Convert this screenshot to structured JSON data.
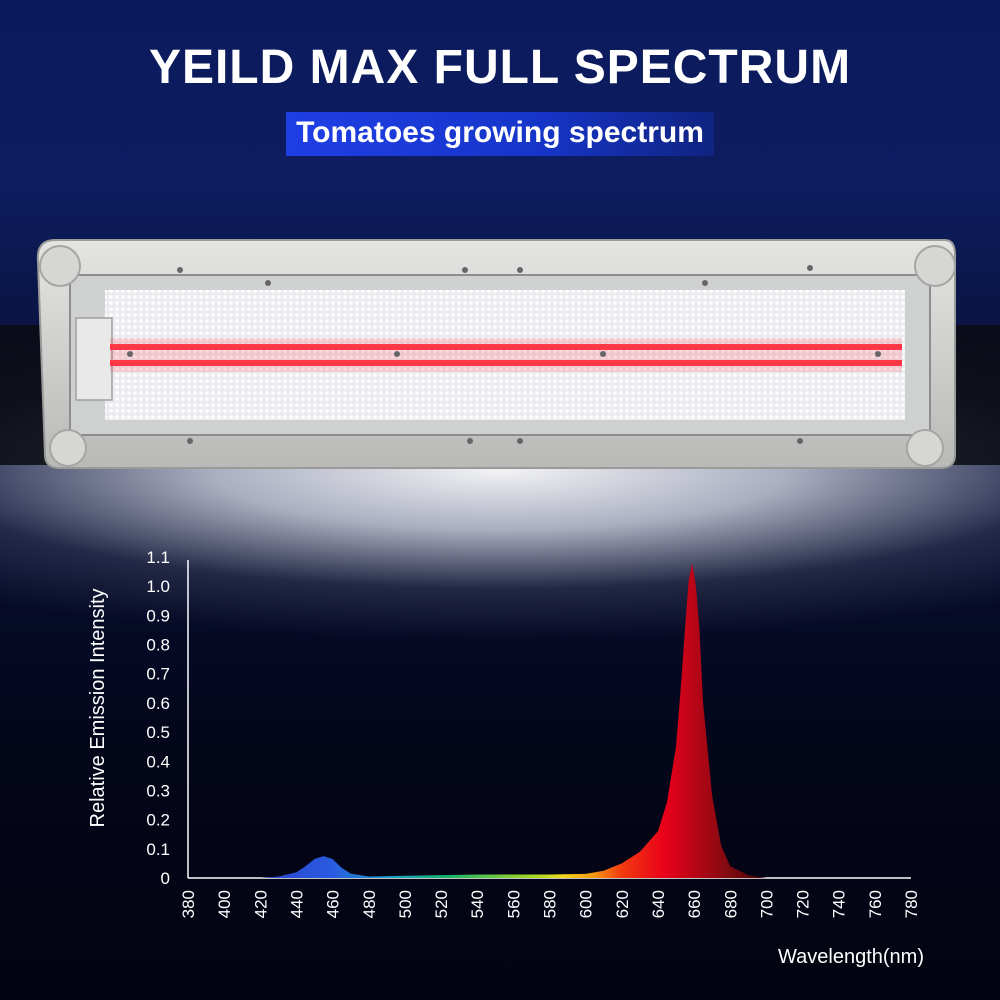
{
  "header": {
    "title": "YEILD MAX FULL SPECTRUM",
    "subtitle": "Tomatoes growing spectrum"
  },
  "colors": {
    "subtitle_bg": "#1f3fe6",
    "title_text": "#ffffff",
    "red_peak": "#e8001a",
    "blue_peak": "#2a4fd8"
  },
  "chart_data": {
    "type": "area",
    "title": "",
    "xlabel": "Wavelength(nm)",
    "ylabel": "Relative Emission Intensity",
    "xlim": [
      380,
      780
    ],
    "ylim": [
      0,
      1.1
    ],
    "xticks": [
      380,
      400,
      420,
      440,
      460,
      480,
      500,
      520,
      540,
      560,
      580,
      600,
      620,
      640,
      660,
      680,
      700,
      720,
      740,
      760,
      780
    ],
    "yticks": [
      "0",
      "0.1",
      "0.2",
      "0.3",
      "0.4",
      "0.5",
      "0.6",
      "0.7",
      "0.8",
      "0.9",
      "1.0",
      "1.1"
    ],
    "grid": false,
    "legend": "none",
    "series": [
      {
        "x": [
          380,
          420,
          430,
          440,
          445,
          450,
          455,
          460,
          465,
          470,
          480,
          500,
          520,
          540,
          560,
          580,
          600,
          610,
          620,
          630,
          640,
          645,
          650,
          653,
          655,
          657,
          659,
          661,
          663,
          665,
          670,
          675,
          680,
          690,
          700,
          780
        ],
        "y": [
          0,
          0,
          0.005,
          0.02,
          0.04,
          0.065,
          0.075,
          0.065,
          0.035,
          0.015,
          0.005,
          0.008,
          0.01,
          0.012,
          0.012,
          0.012,
          0.014,
          0.025,
          0.05,
          0.09,
          0.16,
          0.26,
          0.45,
          0.68,
          0.86,
          1.02,
          1.08,
          1.0,
          0.85,
          0.6,
          0.28,
          0.11,
          0.04,
          0.01,
          0,
          0
        ]
      }
    ]
  }
}
